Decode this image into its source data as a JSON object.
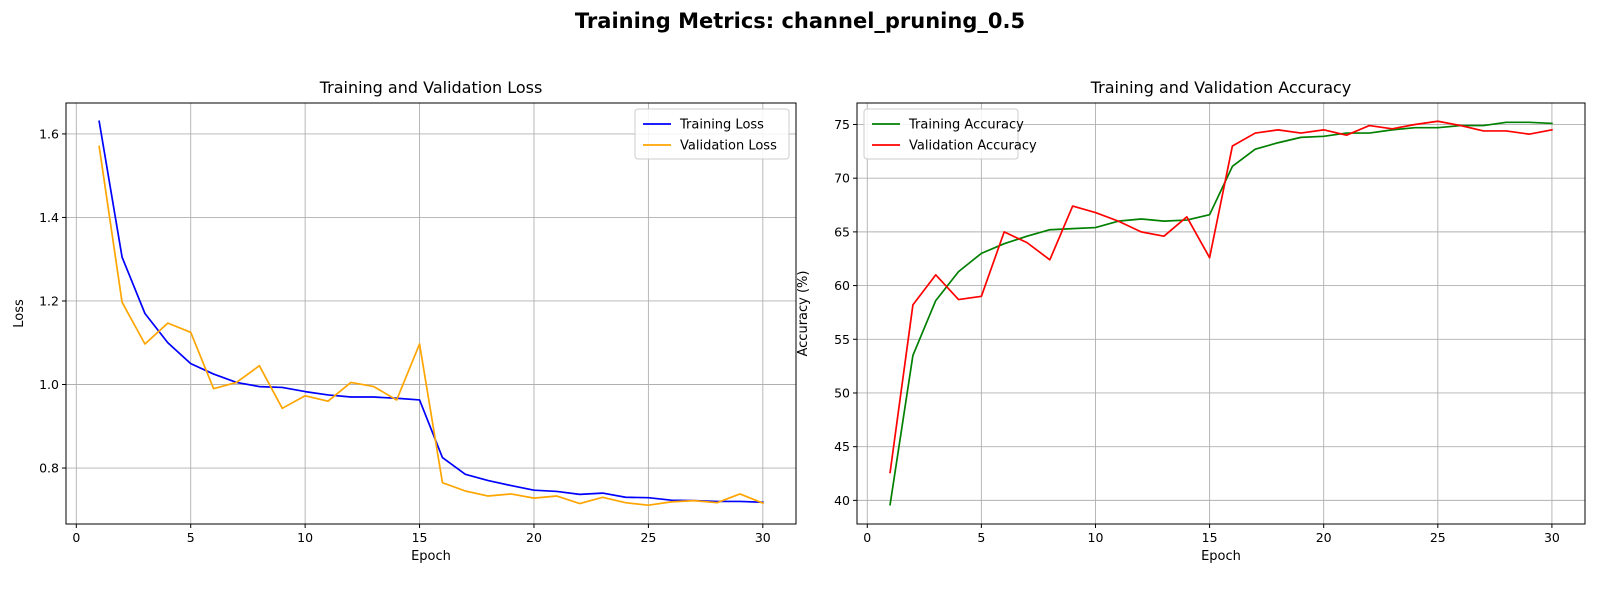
{
  "figure": {
    "title": "Training Metrics: channel_pruning_0.5"
  },
  "chart_data": [
    {
      "type": "line",
      "title": "Training and Validation Loss",
      "xlabel": "Epoch",
      "ylabel": "Loss",
      "xlim": [
        -0.45,
        31.45
      ],
      "ylim": [
        0.666,
        1.674
      ],
      "xticks": [
        0,
        5,
        10,
        15,
        20,
        25,
        30
      ],
      "yticks": [
        0.8,
        1.0,
        1.2,
        1.4,
        1.6
      ],
      "ytick_format": 1,
      "grid": true,
      "legend_position": "top-right",
      "x": [
        1,
        2,
        3,
        4,
        5,
        6,
        7,
        8,
        9,
        10,
        11,
        12,
        13,
        14,
        15,
        16,
        17,
        18,
        19,
        20,
        21,
        22,
        23,
        24,
        25,
        26,
        27,
        28,
        29,
        30
      ],
      "series": [
        {
          "name": "Training Loss",
          "color": "#0000ff",
          "values": [
            1.63,
            1.305,
            1.17,
            1.1,
            1.05,
            1.025,
            1.005,
            0.995,
            0.993,
            0.983,
            0.975,
            0.97,
            0.97,
            0.967,
            0.963,
            0.825,
            0.785,
            0.77,
            0.758,
            0.747,
            0.744,
            0.737,
            0.74,
            0.73,
            0.729,
            0.723,
            0.722,
            0.72,
            0.72,
            0.718
          ]
        },
        {
          "name": "Validation Loss",
          "color": "#ffa500",
          "values": [
            1.57,
            1.197,
            1.097,
            1.147,
            1.125,
            0.99,
            1.005,
            1.045,
            0.943,
            0.973,
            0.96,
            1.005,
            0.995,
            0.963,
            1.097,
            0.765,
            0.745,
            0.733,
            0.738,
            0.728,
            0.733,
            0.715,
            0.73,
            0.717,
            0.711,
            0.719,
            0.722,
            0.717,
            0.738,
            0.716
          ]
        }
      ]
    },
    {
      "type": "line",
      "title": "Training and Validation Accuracy",
      "xlabel": "Epoch",
      "ylabel": "Accuracy (%)",
      "xlim": [
        -0.45,
        31.45
      ],
      "ylim": [
        37.8,
        77.0
      ],
      "xticks": [
        0,
        5,
        10,
        15,
        20,
        25,
        30
      ],
      "yticks": [
        40,
        45,
        50,
        55,
        60,
        65,
        70,
        75
      ],
      "ytick_format": 0,
      "grid": true,
      "legend_position": "top-left",
      "x": [
        1,
        2,
        3,
        4,
        5,
        6,
        7,
        8,
        9,
        10,
        11,
        12,
        13,
        14,
        15,
        16,
        17,
        18,
        19,
        20,
        21,
        22,
        23,
        24,
        25,
        26,
        27,
        28,
        29,
        30
      ],
      "series": [
        {
          "name": "Training Accuracy",
          "color": "#008000",
          "values": [
            39.6,
            53.5,
            58.6,
            61.3,
            63.0,
            63.9,
            64.6,
            65.2,
            65.3,
            65.4,
            66.0,
            66.2,
            66.0,
            66.1,
            66.6,
            71.1,
            72.7,
            73.3,
            73.8,
            73.9,
            74.2,
            74.2,
            74.5,
            74.7,
            74.7,
            74.9,
            74.9,
            75.2,
            75.2,
            75.1
          ]
        },
        {
          "name": "Validation Accuracy",
          "color": "#ff0000",
          "values": [
            42.6,
            58.2,
            61.0,
            58.7,
            59.0,
            65.0,
            64.0,
            62.4,
            67.4,
            66.8,
            66.0,
            65.0,
            64.6,
            66.4,
            62.6,
            73.0,
            74.2,
            74.5,
            74.2,
            74.5,
            74.0,
            74.9,
            74.6,
            75.0,
            75.3,
            74.9,
            74.4,
            74.4,
            74.1,
            74.5
          ]
        }
      ]
    }
  ]
}
